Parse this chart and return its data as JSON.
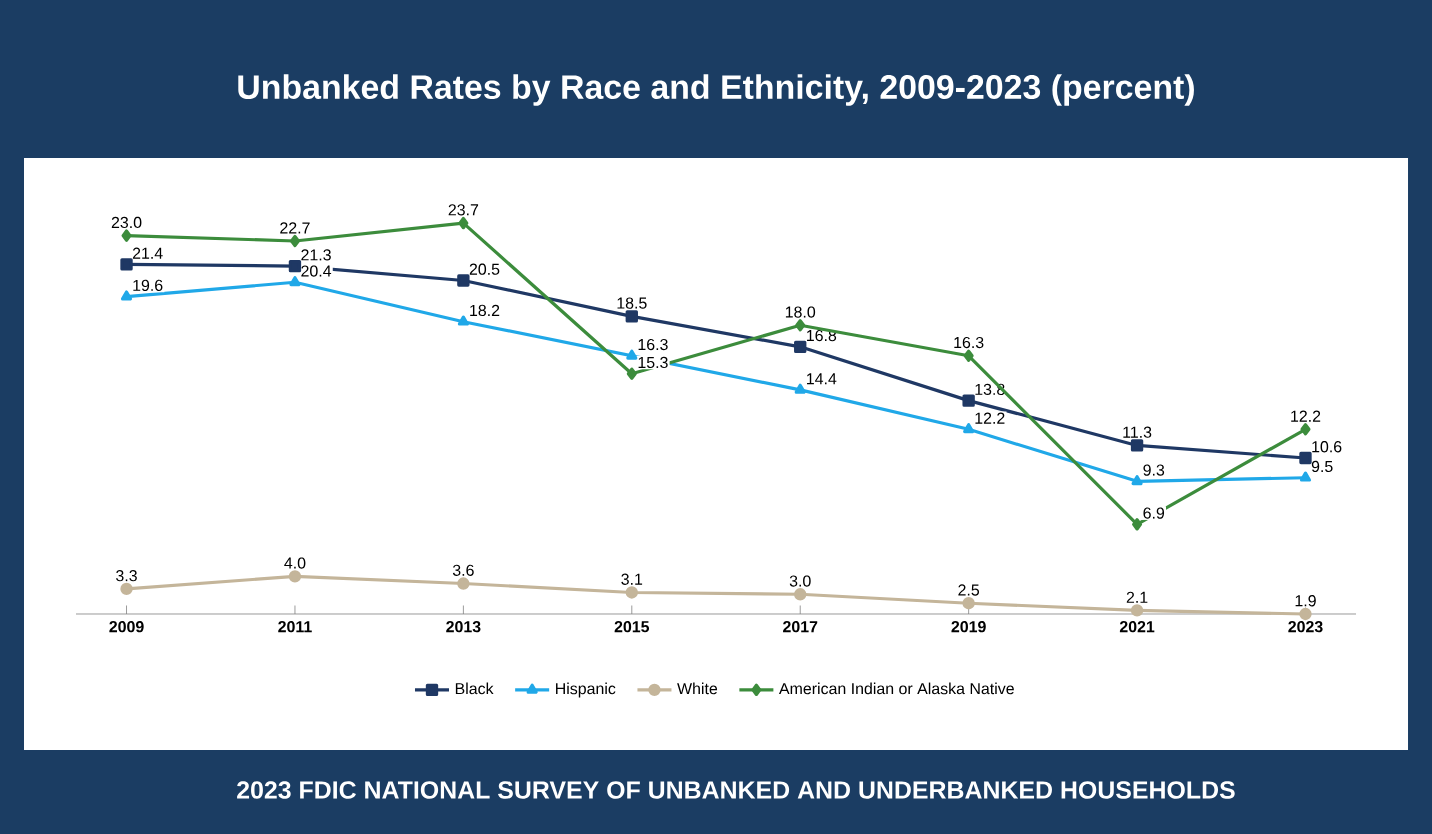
{
  "chart_data": {
    "type": "line",
    "title": "Unbanked Rates by Race and Ethnicity, 2009-2023 (percent)",
    "categories": [
      "2009",
      "2011",
      "2013",
      "2015",
      "2017",
      "2019",
      "2021",
      "2023"
    ],
    "series": [
      {
        "name": "Black",
        "color": "#1f3864",
        "marker": "square",
        "values": [
          21.4,
          21.3,
          20.5,
          18.5,
          16.8,
          13.8,
          11.3,
          10.6
        ],
        "value_labels": [
          "21.4",
          "21.3",
          "20.5",
          "18.5",
          "16.8",
          "13.8",
          "11.3",
          "10.6"
        ]
      },
      {
        "name": "Hispanic",
        "color": "#20a8e8",
        "marker": "triangle",
        "values": [
          19.6,
          20.4,
          18.2,
          16.3,
          14.4,
          12.2,
          9.3,
          9.5
        ],
        "value_labels": [
          "19.6",
          "20.4",
          "18.2",
          "16.3",
          "14.4",
          "12.2",
          "9.3",
          "9.5"
        ]
      },
      {
        "name": "White",
        "color": "#c4b59a",
        "marker": "circle",
        "values": [
          3.3,
          4.0,
          3.6,
          3.1,
          3.0,
          2.5,
          2.1,
          1.9
        ],
        "value_labels": [
          "3.3",
          "4.0",
          "3.6",
          "3.1",
          "3.0",
          "2.5",
          "2.1",
          "1.9"
        ]
      },
      {
        "name": "American Indian or Alaska Native",
        "color": "#3c8c3c",
        "marker": "diamond",
        "values": [
          23.0,
          22.7,
          23.7,
          15.3,
          18.0,
          16.3,
          6.9,
          12.2
        ],
        "value_labels": [
          "23.0",
          "22.7",
          "23.7",
          "15.3",
          "18.0",
          "16.3",
          "6.9",
          "12.2"
        ]
      }
    ],
    "legend": "bottom",
    "grid": false,
    "line_style": "solid",
    "annotations": [
      "2023 FDIC NATIONAL SURVEY OF UNBANKED AND UNDERBANKED HOUSEHOLDS"
    ]
  }
}
